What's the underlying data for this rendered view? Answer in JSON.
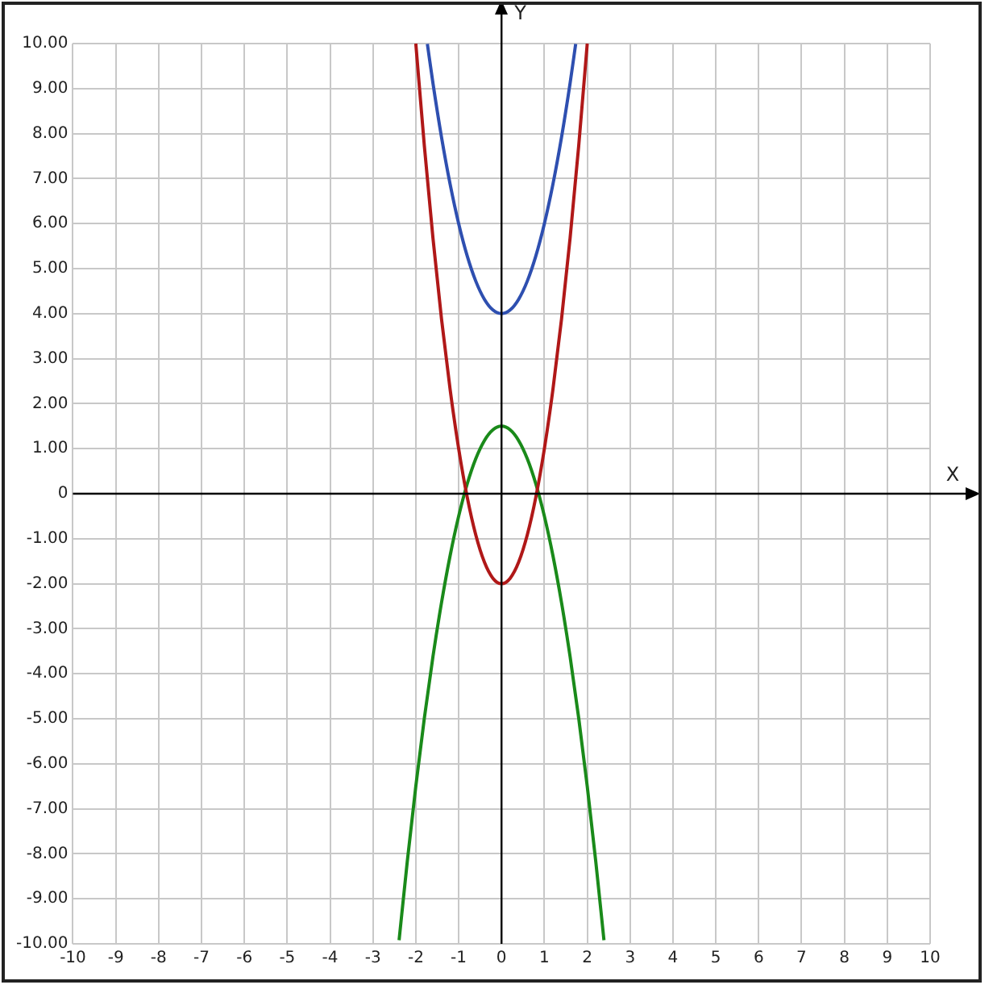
{
  "chart_data": {
    "type": "line",
    "xlabel": "X",
    "ylabel": "Y",
    "xlim": [
      -10,
      10
    ],
    "ylim": [
      -10,
      10
    ],
    "xticks": [
      -10,
      -9,
      -8,
      -7,
      -6,
      -5,
      -4,
      -3,
      -2,
      -1,
      0,
      1,
      2,
      3,
      4,
      5,
      6,
      7,
      8,
      9,
      10
    ],
    "yticks": [
      {
        "value": -10,
        "label": "-10.00"
      },
      {
        "value": -9,
        "label": "-9.00"
      },
      {
        "value": -8,
        "label": "-8.00"
      },
      {
        "value": -7,
        "label": "-7.00"
      },
      {
        "value": -6,
        "label": "-6.00"
      },
      {
        "value": -5,
        "label": "-5.00"
      },
      {
        "value": -4,
        "label": "-4.00"
      },
      {
        "value": -3,
        "label": "-3.00"
      },
      {
        "value": -2,
        "label": "-2.00"
      },
      {
        "value": -1,
        "label": "-1.00"
      },
      0,
      {
        "value": 1,
        "label": "1.00"
      },
      {
        "value": 2,
        "label": "2.00"
      },
      {
        "value": 3,
        "label": "3.00"
      },
      {
        "value": 4,
        "label": "4.00"
      },
      {
        "value": 5,
        "label": "5.00"
      },
      {
        "value": 6,
        "label": "6.00"
      },
      {
        "value": 7,
        "label": "7.00"
      },
      {
        "value": 8,
        "label": "8.00"
      },
      {
        "value": 9,
        "label": "9.00"
      },
      {
        "value": 10,
        "label": "10.00"
      }
    ],
    "grid": true,
    "legend": false,
    "marker": "none",
    "line_style": "solid",
    "series": [
      {
        "color": "#2e4fb0",
        "x": [
          -1.73,
          -1.6,
          -1.4,
          -1.2,
          -1,
          -0.8,
          -0.6,
          -0.4,
          -0.2,
          0,
          0.2,
          0.4,
          0.6,
          0.8,
          1,
          1.2,
          1.4,
          1.6,
          1.73
        ],
        "values": [
          9.99,
          9.12,
          7.92,
          6.88,
          6,
          5.28,
          4.72,
          4.32,
          4.08,
          4,
          4.08,
          4.32,
          4.72,
          5.28,
          6,
          6.88,
          7.92,
          9.12,
          9.99
        ]
      },
      {
        "color": "#b01818",
        "x": [
          -2,
          -1.8,
          -1.6,
          -1.4,
          -1.2,
          -1,
          -0.8,
          -0.6,
          -0.4,
          -0.2,
          0,
          0.2,
          0.4,
          0.6,
          0.8,
          1,
          1.2,
          1.4,
          1.6,
          1.8,
          2
        ],
        "values": [
          10,
          7.72,
          5.68,
          3.88,
          2.32,
          1,
          -0.08,
          -0.92,
          -1.52,
          -1.88,
          -2,
          -1.88,
          -1.52,
          -0.92,
          -0.08,
          1,
          2.32,
          3.88,
          5.68,
          7.72,
          10
        ]
      },
      {
        "color": "#1a8a1a",
        "x": [
          -2.39,
          -2.2,
          -2,
          -1.8,
          -1.6,
          -1.4,
          -1.2,
          -1,
          -0.8,
          -0.6,
          -0.4,
          -0.2,
          0,
          0.2,
          0.4,
          0.6,
          0.8,
          1,
          1.2,
          1.4,
          1.6,
          1.8,
          2,
          2.2,
          2.39
        ],
        "values": [
          -9.92,
          -8.18,
          -6.5,
          -4.98,
          -3.62,
          -2.42,
          -1.38,
          -0.5,
          0.22,
          0.78,
          1.18,
          1.42,
          1.5,
          1.42,
          1.18,
          0.78,
          0.22,
          -0.5,
          -1.38,
          -2.42,
          -3.62,
          -4.98,
          -6.5,
          -8.18,
          -9.92
        ]
      }
    ]
  }
}
